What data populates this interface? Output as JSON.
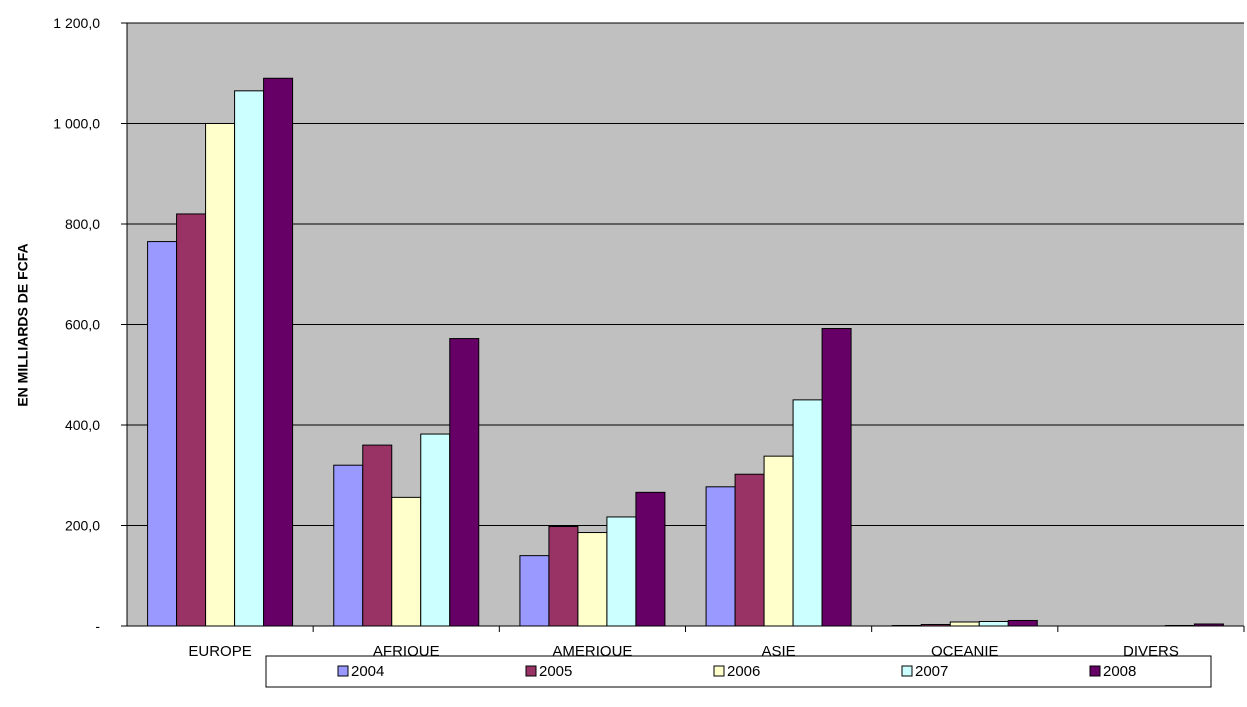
{
  "chart_data": {
    "type": "bar",
    "title": "",
    "xlabel": "",
    "ylabel": "EN MILLIARDS DE FCFA",
    "ylim": [
      0,
      1200
    ],
    "yticks": [
      {
        "value": 0,
        "label": "-"
      },
      {
        "value": 200,
        "label": "200,0"
      },
      {
        "value": 400,
        "label": "400,0"
      },
      {
        "value": 600,
        "label": "600,0"
      },
      {
        "value": 800,
        "label": "800,0"
      },
      {
        "value": 1000,
        "label": "1 000,0"
      },
      {
        "value": 1200,
        "label": "1 200,0"
      }
    ],
    "grid": true,
    "legend_position": "bottom",
    "plot_background": "#c0c0c0",
    "categories": [
      "EUROPE",
      "AFRIQUE",
      "AMERIQUE",
      "ASIE",
      "OCEANIE",
      "DIVERS"
    ],
    "series": [
      {
        "name": "2004",
        "color": "#9999ff",
        "values": [
          765,
          320,
          140,
          277,
          1,
          0
        ]
      },
      {
        "name": "2005",
        "color": "#993366",
        "values": [
          820,
          360,
          198,
          302,
          3,
          0
        ]
      },
      {
        "name": "2006",
        "color": "#ffffcc",
        "values": [
          1000,
          256,
          186,
          338,
          8,
          0
        ]
      },
      {
        "name": "2007",
        "color": "#ccffff",
        "values": [
          1065,
          382,
          217,
          450,
          9,
          1
        ]
      },
      {
        "name": "2008",
        "color": "#660066",
        "values": [
          1090,
          572,
          266,
          592,
          11,
          4
        ]
      }
    ]
  }
}
